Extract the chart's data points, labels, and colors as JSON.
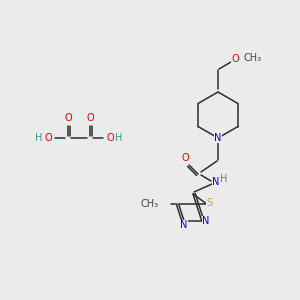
{
  "bg_color": "#ebebeb",
  "bond_color": "#2d2d2d",
  "atom_colors": {
    "O": "#e60000",
    "N": "#0000e6",
    "S": "#b8b800",
    "H": "#4a8f8f",
    "C": "#2d2d2d"
  },
  "font_size": 7.0,
  "line_width": 1.1,
  "fig_size": [
    3.0,
    3.0
  ],
  "dpi": 100
}
